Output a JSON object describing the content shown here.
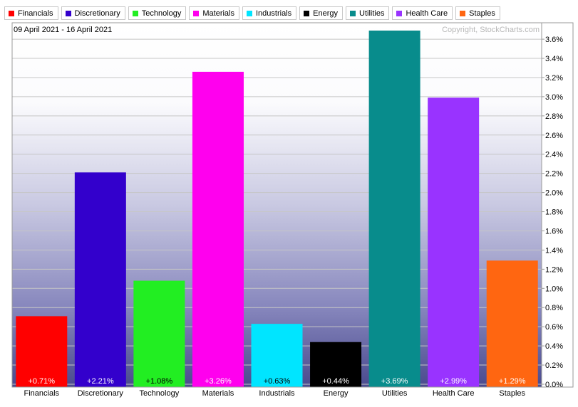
{
  "chart_data": {
    "type": "bar",
    "date_range": "09 April 2021 - 16 April 2021",
    "copyright": "Copyright, StockCharts.com",
    "categories": [
      "Financials",
      "Discretionary",
      "Technology",
      "Materials",
      "Industrials",
      "Energy",
      "Utilities",
      "Health Care",
      "Staples"
    ],
    "values": [
      0.71,
      2.21,
      1.08,
      3.26,
      0.63,
      0.44,
      3.69,
      2.99,
      1.29
    ],
    "data_labels": [
      "+0.71%",
      "+2.21%",
      "+1.08%",
      "+3.26%",
      "+0.63%",
      "+0.44%",
      "+3.69%",
      "+2.99%",
      "+1.29%"
    ],
    "colors": [
      "#ff0000",
      "#3300cc",
      "#22ee22",
      "#ff00ee",
      "#00e5ff",
      "#000000",
      "#088c8c",
      "#9933ff",
      "#ff6611"
    ],
    "label_colors": [
      "#ffffff",
      "#ffffff",
      "#000000",
      "#ffffff",
      "#000000",
      "#ffffff",
      "#ffffff",
      "#ffffff",
      "#ffffff"
    ],
    "legend": [
      "Financials",
      "Discretionary",
      "Technology",
      "Materials",
      "Industrials",
      "Energy",
      "Utilities",
      "Health Care",
      "Staples"
    ],
    "ylim": [
      0,
      3.6
    ],
    "y_ticks": [
      0.0,
      0.2,
      0.4,
      0.6,
      0.8,
      1.0,
      1.2,
      1.4,
      1.6,
      1.8,
      2.0,
      2.2,
      2.4,
      2.6,
      2.8,
      3.0,
      3.2,
      3.4,
      3.6
    ],
    "y_tick_labels": [
      "0.0%",
      "0.2%",
      "0.4%",
      "0.6%",
      "0.8%",
      "1.0%",
      "1.2%",
      "1.4%",
      "1.6%",
      "1.8%",
      "2.0%",
      "2.2%",
      "2.4%",
      "2.6%",
      "2.8%",
      "3.0%",
      "3.2%",
      "3.4%",
      "3.6%"
    ],
    "y_axis_side": "right",
    "grid": true,
    "legend_position": "top"
  }
}
